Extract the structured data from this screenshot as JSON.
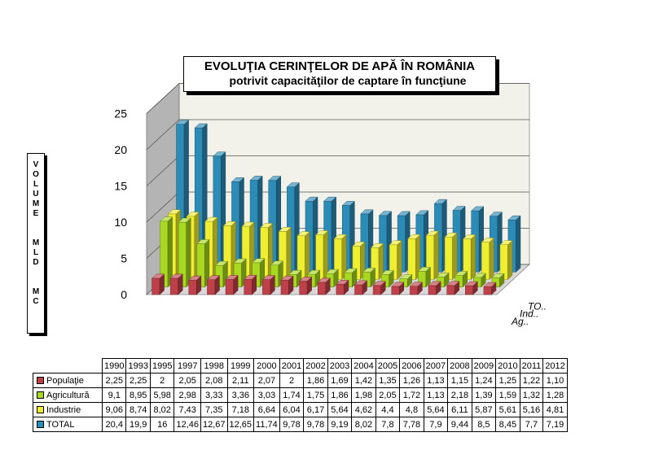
{
  "chart_data": {
    "type": "bar",
    "title": "EVOLUŢIA CERINŢELOR DE APĂ ÎN ROMÂNIA",
    "subtitle": "potrivit capacităţilor de captare în funcţiune",
    "ylabel": "V O L U M E  M L D  M C",
    "ylabel_stacked": "V\nO\nL\nU\nM\nE\n\n\nM\nL\nD\n\n\nM\nC",
    "ylim": [
      0,
      25
    ],
    "yticks": [
      "0",
      "5",
      "10",
      "15",
      "20",
      "25"
    ],
    "categories": [
      "1990",
      "1993",
      "1995",
      "1997",
      "1998",
      "1999",
      "2000",
      "2001",
      "2002",
      "2003",
      "2004",
      "2005",
      "2006",
      "2007",
      "2008",
      "2009",
      "2010",
      "2011",
      "2012"
    ],
    "series_axis_labels": [
      "Ag..",
      "Ind..",
      "TO.."
    ],
    "series": [
      {
        "name": "Populaţie",
        "color": "#c0404a",
        "values": [
          2.25,
          2.25,
          2,
          2.05,
          2.08,
          2.11,
          2.07,
          2,
          1.86,
          1.69,
          1.42,
          1.35,
          1.26,
          1.13,
          1.15,
          1.24,
          1.25,
          1.22,
          1.1
        ],
        "labels": [
          "2,25",
          "2,25",
          "2",
          "2,05",
          "2,08",
          "2,11",
          "2,07",
          "2",
          "1,86",
          "1,69",
          "1,42",
          "1,35",
          "1,26",
          "1,13",
          "1,15",
          "1,24",
          "1,25",
          "1,22",
          "1,10"
        ]
      },
      {
        "name": "Agricultură",
        "color": "#a8d820",
        "values": [
          9.1,
          8.95,
          5.98,
          2.98,
          3.33,
          3.36,
          3.03,
          1.74,
          1.75,
          1.86,
          1.98,
          2.05,
          1.72,
          1.13,
          2.18,
          1.39,
          1.59,
          1.32,
          1.28
        ],
        "labels": [
          "9,1",
          "8,95",
          "5,98",
          "2,98",
          "3,33",
          "3,36",
          "3,03",
          "1,74",
          "1,75",
          "1,86",
          "1,98",
          "2,05",
          "1,72",
          "1,13",
          "2,18",
          "1,39",
          "1,59",
          "1,32",
          "1,28"
        ]
      },
      {
        "name": "Industrie",
        "color": "#f0ee30",
        "values": [
          9.06,
          8.74,
          8.02,
          7.43,
          7.35,
          7.18,
          6.64,
          6.04,
          6.17,
          5.64,
          4.62,
          4.4,
          4.8,
          5.64,
          6.11,
          5.87,
          5.61,
          5.16,
          4.81
        ],
        "labels": [
          "9,06",
          "8,74",
          "8,02",
          "7,43",
          "7,35",
          "7,18",
          "6,64",
          "6,04",
          "6,17",
          "5,64",
          "4,62",
          "4,4",
          "4,8",
          "5,64",
          "6,11",
          "5,87",
          "5,61",
          "5,16",
          "4,81"
        ]
      },
      {
        "name": "TOTAL",
        "color": "#2c8cb8",
        "values": [
          20.4,
          19.9,
          16,
          12.46,
          12.67,
          12.65,
          11.74,
          9.78,
          9.78,
          9.19,
          8.02,
          7.8,
          7.78,
          7.9,
          9.44,
          8.5,
          8.45,
          7.7,
          7.19
        ],
        "labels": [
          "20,4",
          "19,9",
          "16",
          "12,46",
          "12,67",
          "12,65",
          "11,74",
          "9,78",
          "9,78",
          "9,19",
          "8,02",
          "7,8",
          "7,78",
          "7,9",
          "9,44",
          "8,5",
          "8,45",
          "7,7",
          "7,19"
        ]
      }
    ],
    "grid": true,
    "legend": "table-below"
  }
}
